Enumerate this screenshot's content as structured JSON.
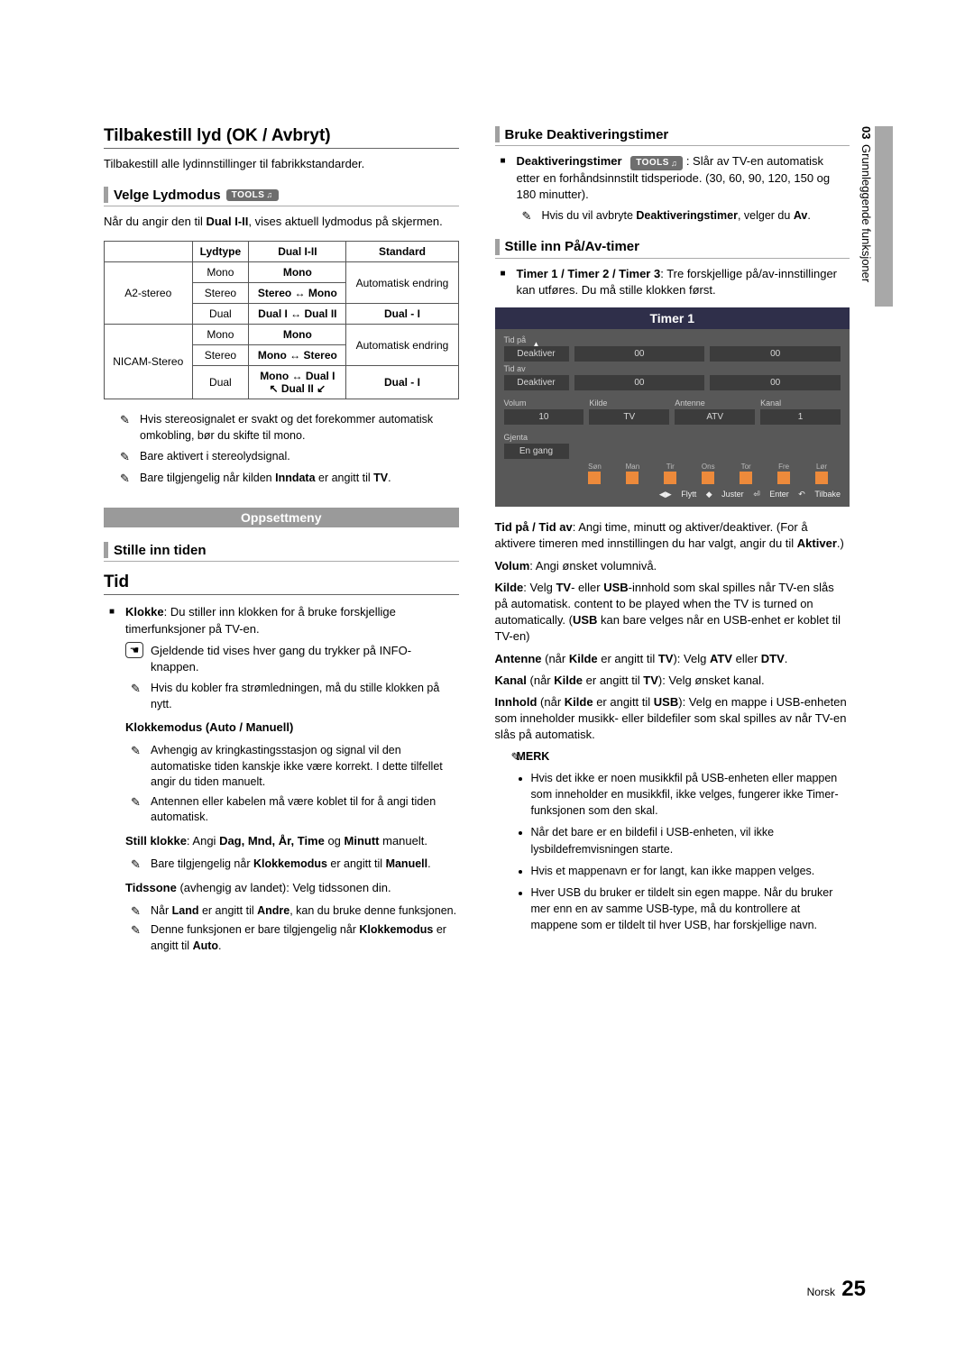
{
  "sidebar": {
    "chapter_num": "03",
    "chapter_title": "Grunnleggende funksjoner"
  },
  "left": {
    "reset_title": "Tilbakestill lyd (OK / Avbryt)",
    "reset_body": "Tilbakestill alle lydinnstillinger til fabrikkstandarder.",
    "lydmodus_title": "Velge Lydmodus",
    "tools_label": "TOOLS",
    "lydmodus_intro_a": "Når du angir den til ",
    "lydmodus_intro_b": "Dual I-II",
    "lydmodus_intro_c": ", vises aktuell lydmodus på skjermen.",
    "table": {
      "head": [
        "",
        "Lydtype",
        "Dual I-II",
        "Standard"
      ],
      "a2_label": "A2-stereo",
      "a2": [
        [
          "Mono",
          "Mono",
          "Automatisk endring"
        ],
        [
          "Stereo",
          "Stereo ↔ Mono",
          ""
        ],
        [
          "Dual",
          "Dual I ↔ Dual II",
          "Dual - I"
        ]
      ],
      "nicam_label": "NICAM-Stereo",
      "nicam": [
        [
          "Mono",
          "Mono",
          "Automatisk endring"
        ],
        [
          "Stereo",
          "Mono ↔ Stereo",
          ""
        ],
        [
          "Dual",
          "Mono ↔ Dual I\n↖ Dual II ↙",
          "Dual - I"
        ]
      ]
    },
    "notes": [
      "Hvis stereosignalet er svakt og det forekommer automatisk omkobling, bør du skifte til mono.",
      "Bare aktivert i stereolydsignal."
    ],
    "note3_a": "Bare tilgjengelig når kilden ",
    "note3_b": "Inndata",
    "note3_c": " er angitt til ",
    "note3_d": "TV",
    "oppsettmeny": "Oppsettmeny",
    "stille_inn_tiden": "Stille inn tiden",
    "tid_heading": "Tid",
    "klokke_a": "Klokke",
    "klokke_b": ": Du stiller inn klokken for å bruke forskjellige timerfunksjoner på TV-en.",
    "hand_text": "Gjeldende tid vises hver gang du trykker på INFO-knappen.",
    "note4": "Hvis du kobler fra strømledningen, må du stille klokken på nytt.",
    "klokkemodus_title": "Klokkemodus (Auto / Manuell)",
    "note5": "Avhengig av kringkastingsstasjon og signal vil den automatiske tiden kanskje ikke være korrekt. I dette tilfellet angir du tiden manuelt.",
    "note6": "Antennen eller kabelen må være koblet til for å angi tiden automatisk.",
    "still_klokke_a": "Still klokke",
    "still_klokke_b": ": Angi ",
    "still_klokke_c": "Dag, Mnd, År, Time",
    "still_klokke_d": " og ",
    "still_klokke_e": "Minutt",
    "still_klokke_f": " manuelt.",
    "note7_a": "Bare tilgjengelig når ",
    "note7_b": "Klokkemodus",
    "note7_c": " er angitt til ",
    "note7_d": "Manuell",
    "tidssone_a": "Tidssone",
    "tidssone_b": " (avhengig av landet): Velg tidssonen din.",
    "note8_a": "Når ",
    "note8_b": "Land",
    "note8_c": " er angitt til ",
    "note8_d": "Andre",
    "note8_e": ", kan du bruke denne funksjonen.",
    "note9_a": "Denne funksjonen er bare tilgjengelig når ",
    "note9_b": "Klokkemodus",
    "note9_c": " er angitt til ",
    "note9_d": "Auto"
  },
  "right": {
    "deakt_title": "Bruke Deaktiveringstimer",
    "deakt_a": "Deaktiveringstimer",
    "deakt_b": ": Slår av TV-en automatisk etter en forhåndsinnstilt tidsperiode. (30, 60, 90, 120, 150 og 180 minutter).",
    "deakt_note_a": "Hvis du vil avbryte ",
    "deakt_note_b": "Deaktiveringstimer",
    "deakt_note_c": ", velger du ",
    "deakt_note_d": "Av",
    "paav_title": "Stille inn På/Av-timer",
    "timer_intro_a": "Timer 1 / Timer 2 / Timer 3",
    "timer_intro_b": ": Tre forskjellige på/av-innstillinger kan utføres. Du må stille klokken først.",
    "timer": {
      "title": "Timer 1",
      "tid_pa": "Tid på",
      "tid_av": "Tid av",
      "deaktiver": "Deaktiver",
      "zero": "00",
      "volum": "Volum",
      "kilde": "Kilde",
      "antenne": "Antenne",
      "kanal": "Kanal",
      "vol_val": "10",
      "kilde_val": "TV",
      "ant_val": "ATV",
      "kan_val": "1",
      "gjenta": "Gjenta",
      "en_gang": "En gang",
      "days": [
        "Søn",
        "Man",
        "Tir",
        "Ons",
        "Tor",
        "Fre",
        "Lør"
      ],
      "footer": {
        "flytt": "Flytt",
        "juster": "Juster",
        "enter": "Enter",
        "tilbake": "Tilbake"
      }
    },
    "p_tid": "Tid på / Tid av: Angi time, minutt og aktiver/deaktiver. (For å aktivere timeren med innstillingen du har valgt, angir du til Aktiver.)",
    "p_tid_bold": [
      "Tid på / Tid av",
      "Aktiver"
    ],
    "p_volum_a": "Volum",
    "p_volum_b": ": Angi ønsket volumnivå.",
    "p_kilde_a": "Kilde",
    "p_kilde_b": ": Velg ",
    "p_kilde_c": "TV",
    "p_kilde_d": "- eller ",
    "p_kilde_e": "USB",
    "p_kilde_f": "-innhold som skal spilles når TV-en slås på automatisk. content to be played when the TV is turned on automatically. (",
    "p_kilde_g": "USB",
    "p_kilde_h": " kan bare velges når en USB-enhet er koblet til TV-en)",
    "p_ant_a": "Antenne",
    "p_ant_b": " (når ",
    "p_ant_c": "Kilde",
    "p_ant_d": " er angitt til ",
    "p_ant_e": "TV",
    "p_ant_f": "): Velg ",
    "p_ant_g": "ATV",
    "p_ant_h": " eller ",
    "p_ant_i": "DTV",
    "p_kanal_a": "Kanal",
    "p_kanal_b": " (når ",
    "p_kanal_c": "Kilde",
    "p_kanal_d": " er angitt til ",
    "p_kanal_e": "TV",
    "p_kanal_f": "): Velg ønsket kanal.",
    "p_innhold_a": "Innhold",
    "p_innhold_b": " (når ",
    "p_innhold_c": "Kilde",
    "p_innhold_d": " er angitt til ",
    "p_innhold_e": "USB",
    "p_innhold_f": "): Velg en mappe i USB-enheten som inneholder musikk- eller bildefiler som skal spilles av når TV-en slås på automatisk.",
    "merk": "MERK",
    "merk_items": [
      "Hvis det ikke er noen musikkfil på USB-enheten eller mappen som inneholder en musikkfil, ikke velges, fungerer ikke Timer-funksjonen som den skal.",
      "Når det bare er en bildefil i USB-enheten, vil ikke lysbildefremvisningen starte.",
      "Hvis et mappenavn er for langt, kan ikke mappen velges.",
      "Hver USB du bruker er tildelt sin egen mappe. Når du bruker mer enn en av samme USB-type, må du kontrollere at mappene som er tildelt til hver USB, har forskjellige navn."
    ]
  },
  "footer": {
    "lang": "Norsk",
    "page": "25"
  }
}
